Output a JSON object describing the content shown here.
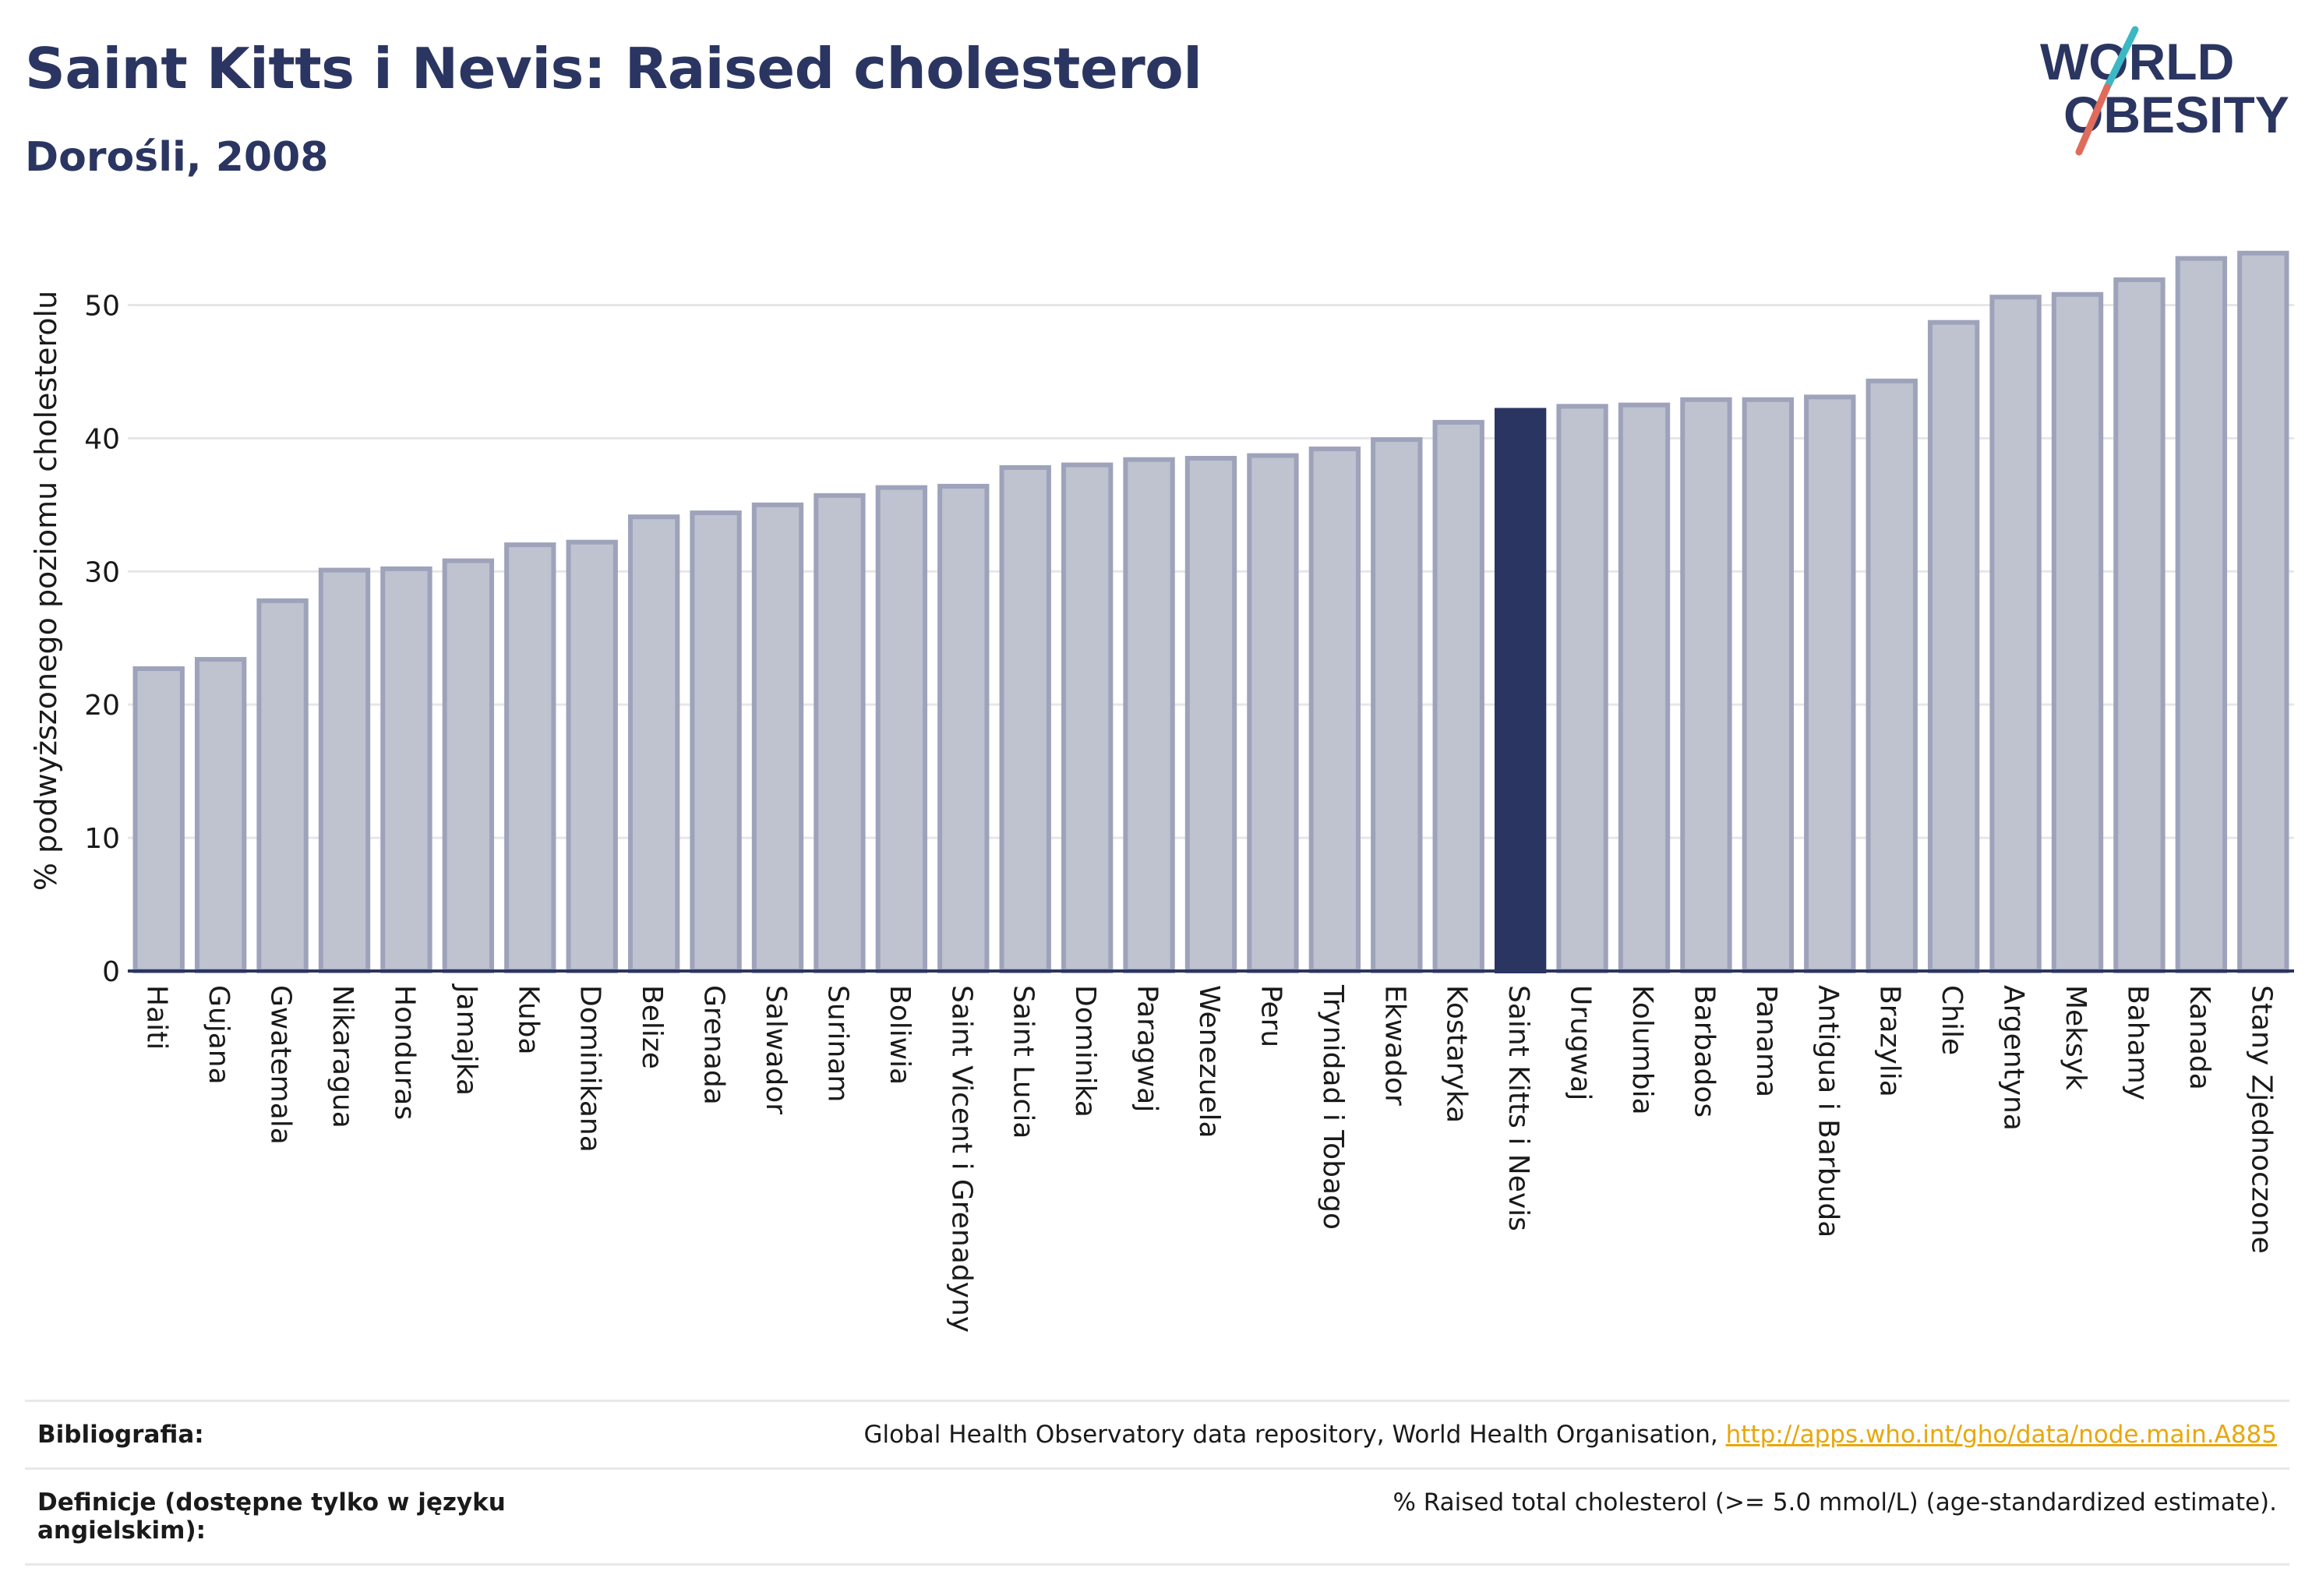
{
  "header": {
    "title": "Saint Kitts i Nevis: Raised cholesterol",
    "subtitle": "Dorośli, 2008"
  },
  "logo": {
    "line1": "WORLD",
    "line2": "OBESITY",
    "icon": "world-obesity-logo",
    "colors": {
      "text": "#2b3561",
      "slash_top": "#3bb8c4",
      "slash_bottom": "#e06b5a"
    }
  },
  "chart_data": {
    "type": "bar",
    "title": "Saint Kitts i Nevis: Raised cholesterol",
    "subtitle": "Dorośli, 2008",
    "ylabel": "% podwyższonego poziomu cholesterolu",
    "xlabel": "",
    "ylim": [
      0,
      55
    ],
    "yticks": [
      0,
      10,
      20,
      30,
      40,
      50
    ],
    "grid": true,
    "highlight": "Saint Kitts i Nevis",
    "colors": {
      "bar": "#bfc2cf",
      "bar_border": "#9ea3bb",
      "highlight": "#2b3561",
      "grid": "#e6e6ea",
      "axis": "#2b3561"
    },
    "categories": [
      "Haiti",
      "Gujana",
      "Gwatemala",
      "Nikaragua",
      "Honduras",
      "Jamajka",
      "Kuba",
      "Dominikana",
      "Belize",
      "Grenada",
      "Salwador",
      "Surinam",
      "Boliwia",
      "Saint Vicent i Grenadyny",
      "Saint Lucia",
      "Dominika",
      "Paragwaj",
      "Wenezuela",
      "Peru",
      "Trynidad i Tobago",
      "Ekwador",
      "Kostaryka",
      "Saint Kitts i Nevis",
      "Urugwaj",
      "Kolumbia",
      "Barbados",
      "Panama",
      "Antigua i Barbuda",
      "Brazylia",
      "Chile",
      "Argentyna",
      "Meksyk",
      "Bahamy",
      "Kanada",
      "Stany Zjednoczone"
    ],
    "values": [
      22.7,
      23.4,
      27.8,
      30.1,
      30.2,
      30.8,
      32.0,
      32.2,
      34.1,
      34.4,
      35.0,
      35.7,
      36.3,
      36.4,
      37.8,
      38.0,
      38.4,
      38.5,
      38.7,
      39.2,
      39.9,
      41.2,
      42.1,
      42.4,
      42.5,
      42.9,
      42.9,
      43.1,
      44.3,
      48.7,
      50.6,
      50.8,
      51.9,
      53.5,
      53.9
    ]
  },
  "footer": {
    "bibliography_label": "Bibliografia:",
    "bibliography_text": "Global Health Observatory data repository, World Health Organisation, ",
    "bibliography_link": "http://apps.who.int/gho/data/node.main.A885",
    "definitions_label": "Definicje (dostępne tylko w języku angielskim):",
    "definitions_text": "% Raised total cholesterol (>= 5.0 mmol/L) (age-standardized estimate)."
  }
}
